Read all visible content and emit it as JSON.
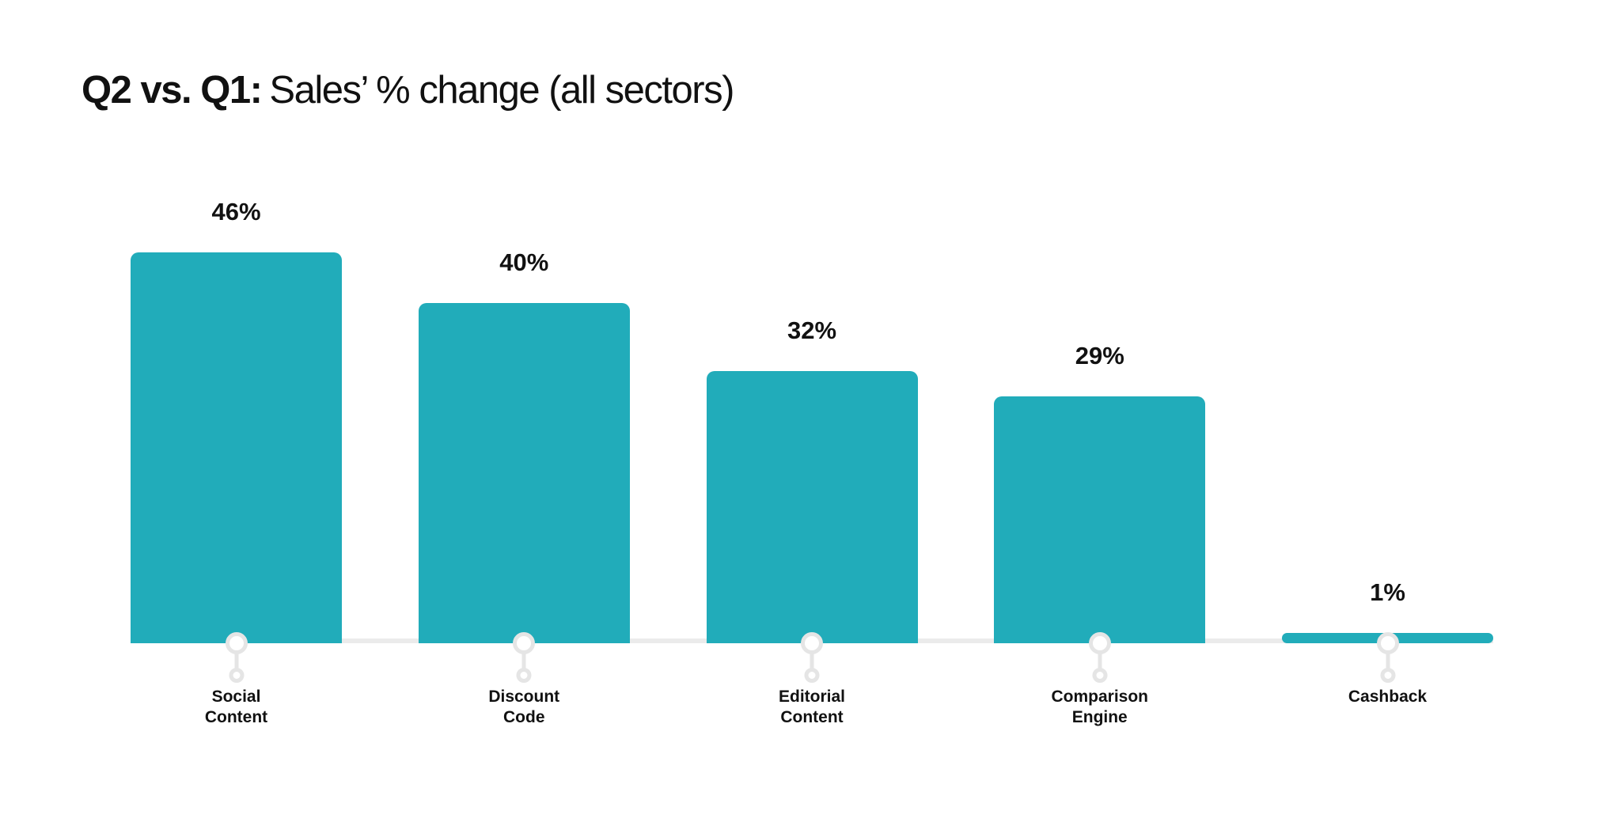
{
  "title": {
    "bold": "Q2 vs. Q1:",
    "regular": "Sales’ % change (all sectors)"
  },
  "colors": {
    "bar": "#21ACBA",
    "marker_gray": "#E5E5E5",
    "axis_gray": "#EBEBEB",
    "text": "#111111",
    "background": "#FFFFFF"
  },
  "chart_data": {
    "type": "bar",
    "title": "Q2 vs. Q1: Sales’ % change (all sectors)",
    "categories": [
      "Social Content",
      "Discount Code",
      "Editorial Content",
      "Comparison Engine",
      "Cashback"
    ],
    "values": [
      46,
      40,
      32,
      29,
      1
    ],
    "value_labels": [
      "46%",
      "40%",
      "32%",
      "29%",
      "1%"
    ],
    "unit": "%",
    "xlabel": "",
    "ylabel": "",
    "ylim": [
      0,
      50
    ],
    "grid": false,
    "legend": false,
    "orientation": "vertical",
    "baseline_axis": true,
    "bar_color": "#21ACBA"
  }
}
